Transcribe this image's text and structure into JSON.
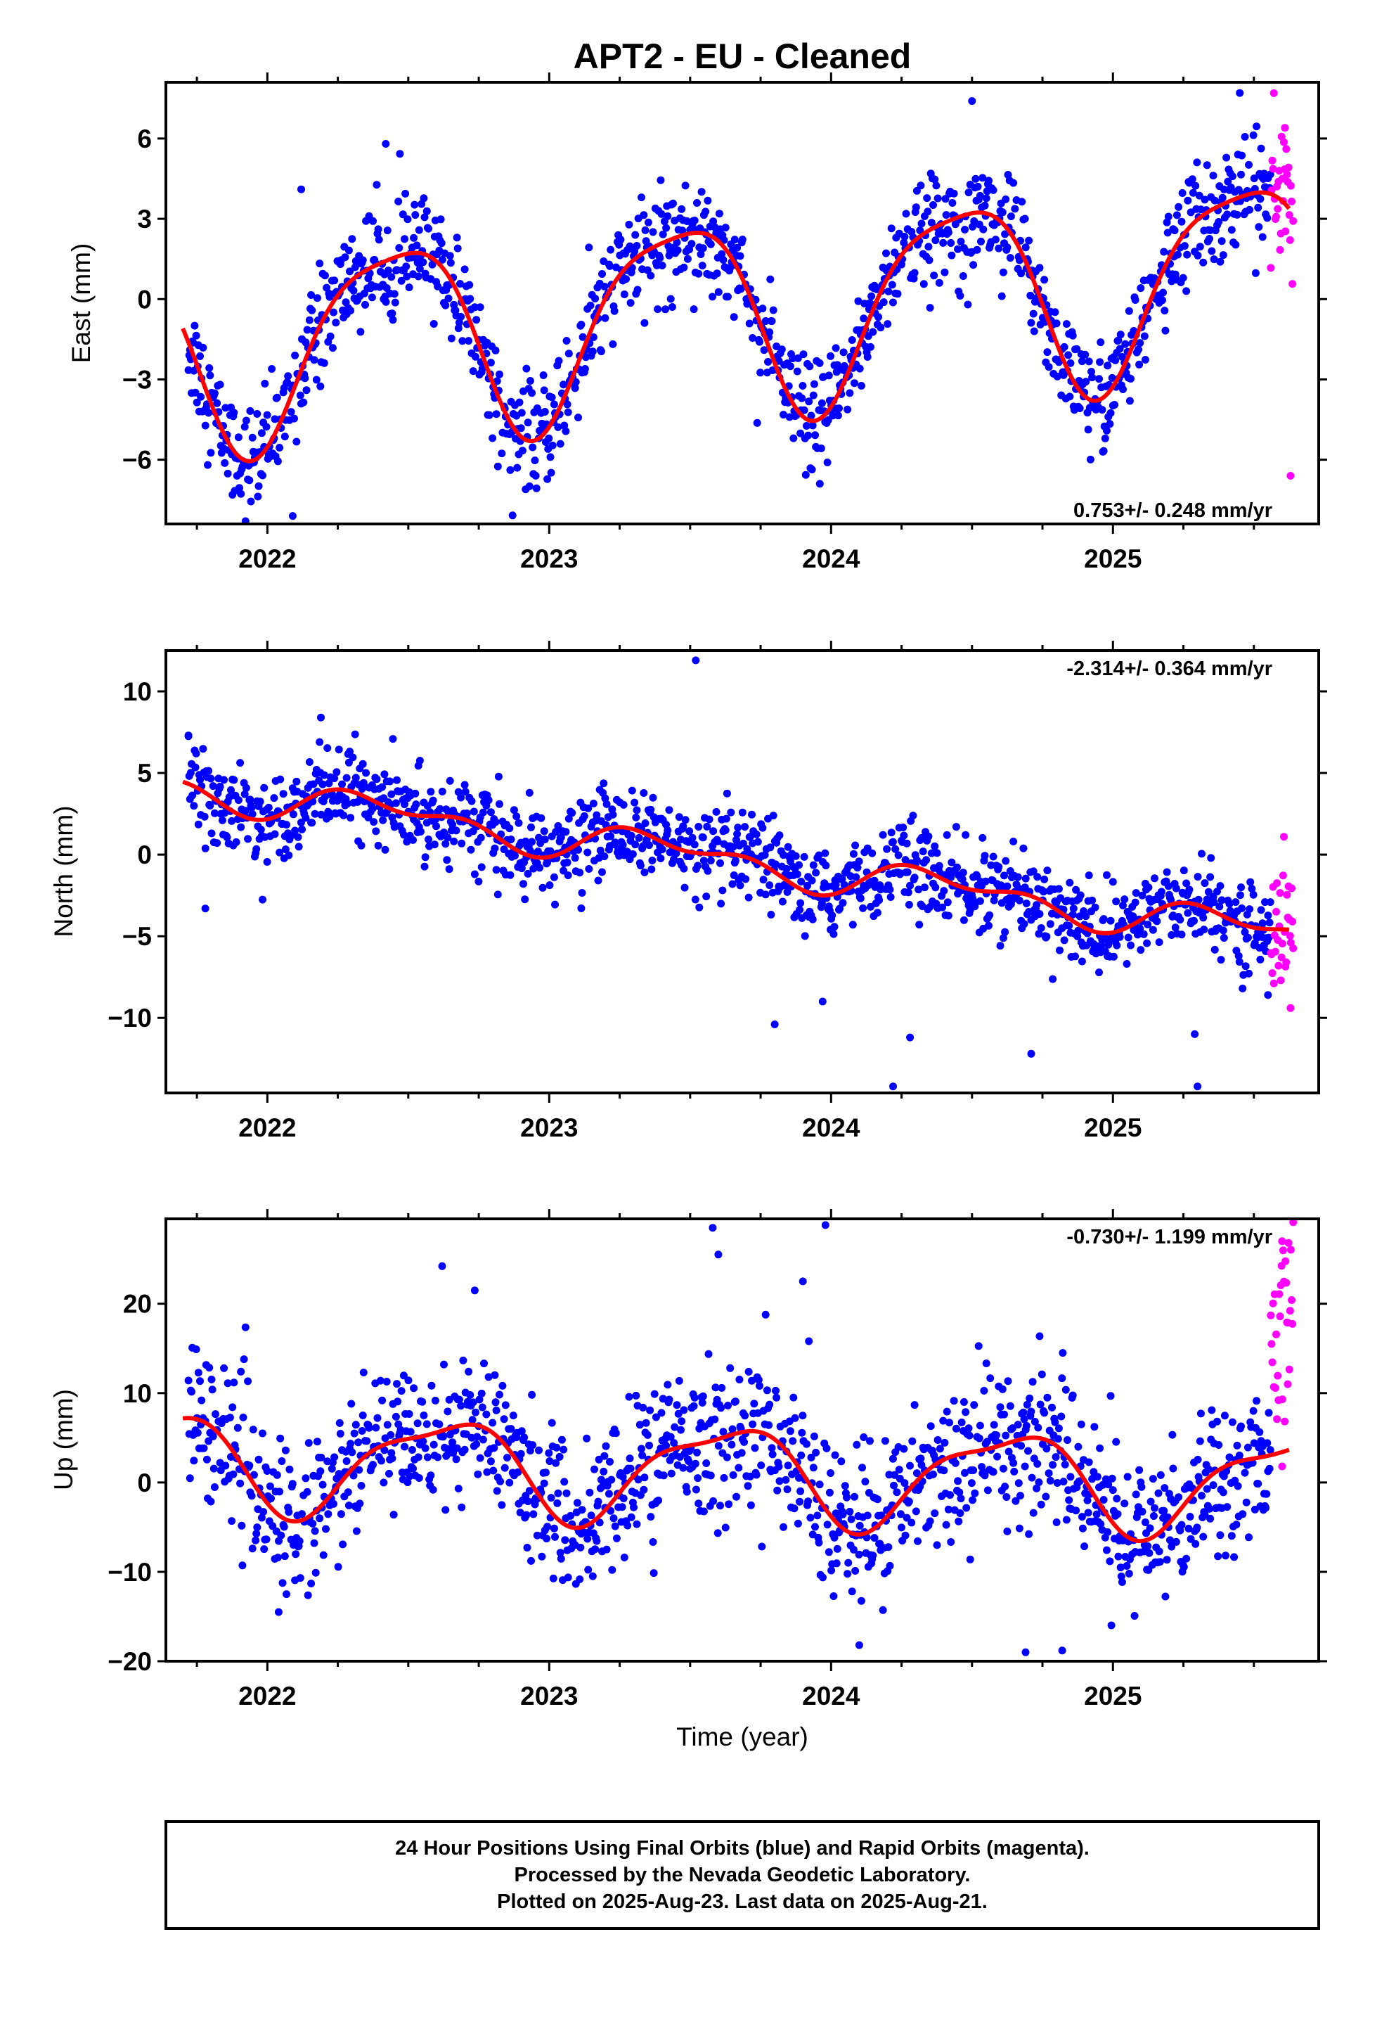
{
  "title": "APT2  - EU - Cleaned",
  "xlabel": "Time (year)",
  "footer": [
    "24 Hour Positions Using Final Orbits (blue) and Rapid Orbits (magenta).",
    "Processed by the Nevada Geodetic Laboratory.",
    "Plotted on 2025-Aug-23. Last data on 2025-Aug-21."
  ],
  "colors": {
    "final": "#0000ff",
    "rapid": "#ff00ff",
    "fit": "#ff0000",
    "axis": "#000000"
  },
  "chart_data": [
    {
      "type": "scatter",
      "name": "east",
      "ylabel": "East (mm)",
      "rate_label": "0.753+/- 0.248 mm/yr",
      "xlim": [
        2021.64,
        2025.73
      ],
      "ylim": [
        -8.4,
        8.1
      ],
      "xticks": [
        2022,
        2023,
        2024,
        2025
      ],
      "yticks": [
        -6,
        -3,
        0,
        3,
        6
      ],
      "fit": {
        "offset": -0.5,
        "rate": 0.753,
        "amp1": 3.6,
        "phase1": 0.45,
        "amp2": 0.8,
        "phase2": 0.05,
        "start": 2021.7,
        "end": 2025.63
      },
      "noise": 1.0,
      "final_range": [
        2021.72,
        2025.56
      ],
      "rapid_range": [
        2025.56,
        2025.64
      ],
      "rapid_extra": 2.0,
      "outliers": [
        [
          2022.09,
          -8.1
        ],
        [
          2022.12,
          4.1
        ],
        [
          2022.42,
          5.8
        ],
        [
          2023.96,
          -6.9
        ],
        [
          2024.5,
          7.4
        ],
        [
          2025.45,
          7.7
        ],
        [
          2025.61,
          6.4
        ],
        [
          2025.63,
          -6.6
        ]
      ]
    },
    {
      "type": "scatter",
      "name": "north",
      "ylabel": "North (mm)",
      "rate_label": "-2.314+/- 0.364 mm/yr",
      "xlim": [
        2021.64,
        2025.73
      ],
      "ylim": [
        -14.6,
        12.5
      ],
      "xticks": [
        2022,
        2023,
        2024,
        2025
      ],
      "yticks": [
        -10,
        -5,
        0,
        5,
        10
      ],
      "fit": {
        "offset": 0.0,
        "rate": -2.314,
        "amp1": 0.9,
        "phase1": 0.4,
        "amp2": 0.6,
        "phase2": 0.1,
        "start": 2021.7,
        "end": 2025.63
      },
      "noise": 1.3,
      "final_range": [
        2021.72,
        2025.56
      ],
      "rapid_range": [
        2025.56,
        2025.64
      ],
      "rapid_extra": 2.5,
      "outliers": [
        [
          2023.52,
          11.9
        ],
        [
          2022.19,
          8.4
        ],
        [
          2021.72,
          7.3
        ],
        [
          2024.22,
          -14.2
        ],
        [
          2024.28,
          -11.2
        ],
        [
          2024.71,
          -12.2
        ],
        [
          2025.3,
          -14.2
        ],
        [
          2025.29,
          -11.0
        ],
        [
          2023.8,
          -10.4
        ],
        [
          2023.97,
          -9.0
        ],
        [
          2025.55,
          -8.6
        ],
        [
          2025.63,
          -9.4
        ],
        [
          2021.78,
          -3.3
        ]
      ]
    },
    {
      "type": "scatter",
      "name": "up",
      "ylabel": "Up (mm)",
      "rate_label": "-0.730+/- 1.199 mm/yr",
      "xlim": [
        2021.64,
        2025.73
      ],
      "ylim": [
        -20,
        29.5
      ],
      "xticks": [
        2022,
        2023,
        2024,
        2025
      ],
      "yticks": [
        -20,
        -10,
        0,
        10,
        20
      ],
      "fit": {
        "offset": 1.3,
        "rate": -0.73,
        "amp1": 5.2,
        "phase1": 0.62,
        "amp2": 1.6,
        "phase2": 0.2,
        "start": 2021.7,
        "end": 2025.63
      },
      "noise": 4.2,
      "final_range": [
        2021.72,
        2025.56
      ],
      "rapid_range": [
        2025.56,
        2025.64
      ],
      "rapid_extra": 14.0,
      "outliers": [
        [
          2023.58,
          28.5
        ],
        [
          2023.98,
          28.8
        ],
        [
          2023.9,
          22.5
        ],
        [
          2022.62,
          24.2
        ],
        [
          2023.6,
          25.5
        ],
        [
          2024.1,
          -18.2
        ],
        [
          2024.69,
          -19.0
        ],
        [
          2024.82,
          -18.8
        ],
        [
          2022.04,
          -14.5
        ],
        [
          2025.6,
          27.0
        ],
        [
          2025.62,
          11.0
        ],
        [
          2025.6,
          1.8
        ]
      ]
    }
  ]
}
